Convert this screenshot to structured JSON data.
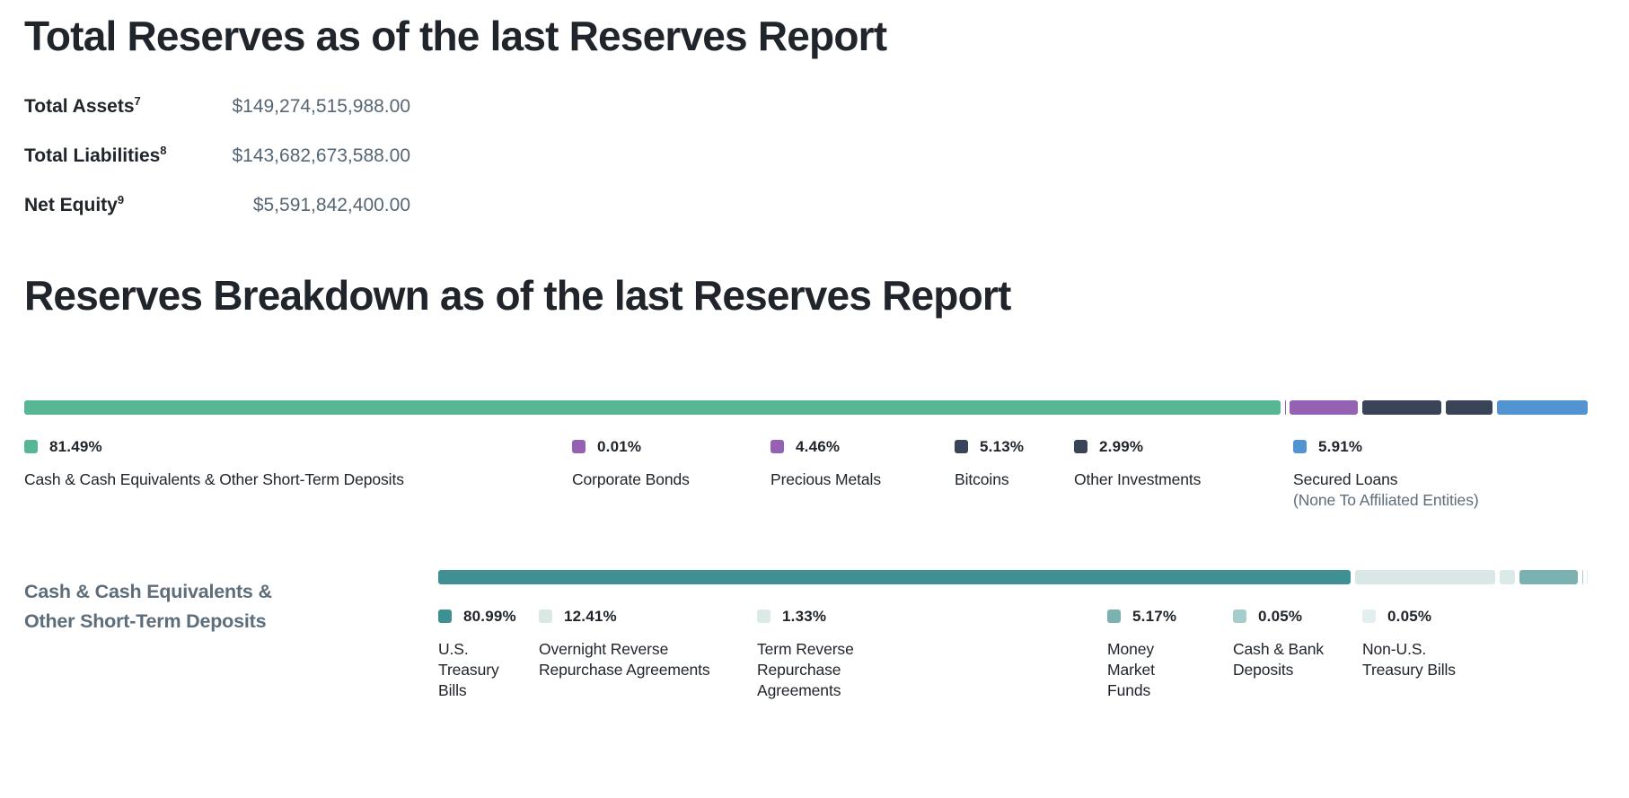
{
  "total_reserves": {
    "title": "Total Reserves as of the last Reserves Report",
    "rows": [
      {
        "label": "Total Assets",
        "footnote": "7",
        "value": "$149,274,515,988.00"
      },
      {
        "label": "Total Liabilities",
        "footnote": "8",
        "value": "$143,682,673,588.00"
      },
      {
        "label": "Net Equity",
        "footnote": "9",
        "value": "$5,591,842,400.00"
      }
    ]
  },
  "reserves_breakdown": {
    "title": "Reserves Breakdown as of the last Reserves Report",
    "sub_label_line1": "Cash & Cash Equivalents &",
    "sub_label_line2": "Other Short-Term Deposits"
  },
  "chart_data": [
    {
      "type": "bar",
      "variant": "horizontal-stacked-100pct",
      "title": "Reserves Breakdown as of the last Reserves Report",
      "unit": "percent",
      "total": 100,
      "segments": [
        {
          "label": "Cash & Cash Equivalents & Other Short-Term Deposits",
          "value": 81.49,
          "display": "81.49%",
          "color": "#57b795"
        },
        {
          "label": "Corporate Bonds",
          "value": 0.01,
          "display": "0.01%",
          "color": "#9561b3"
        },
        {
          "label": "Precious Metals",
          "value": 4.46,
          "display": "4.46%",
          "color": "#9561b3"
        },
        {
          "label": "Bitcoins",
          "value": 5.13,
          "display": "5.13%",
          "color": "#3a4458"
        },
        {
          "label": "Other Investments",
          "value": 2.99,
          "display": "2.99%",
          "color": "#3a4458"
        },
        {
          "label": "Secured Loans",
          "note": "(None To Affiliated Entities)",
          "value": 5.91,
          "display": "5.91%",
          "color": "#5293d2"
        }
      ]
    },
    {
      "type": "bar",
      "variant": "horizontal-stacked-100pct",
      "title": "Cash & Cash Equivalents & Other Short-Term Deposits",
      "unit": "percent",
      "total": 100,
      "segments": [
        {
          "label": "U.S. Treasury Bills",
          "value": 80.99,
          "display": "80.99%",
          "color": "#3e9092"
        },
        {
          "label": "Overnight Reverse Repurchase Agreements",
          "value": 12.41,
          "display": "12.41%",
          "color": "#d9e8e7"
        },
        {
          "label": "Term Reverse Repurchase Agreements",
          "value": 1.33,
          "display": "1.33%",
          "color": "#dbe9e8"
        },
        {
          "label": "Money Market Funds",
          "value": 5.17,
          "display": "5.17%",
          "color": "#7bb2b1"
        },
        {
          "label": "Cash & Bank Deposits",
          "value": 0.05,
          "display": "0.05%",
          "color": "#a6cccb"
        },
        {
          "label": "Non-U.S. Treasury Bills",
          "value": 0.05,
          "display": "0.05%",
          "color": "#e3efee"
        }
      ]
    }
  ]
}
